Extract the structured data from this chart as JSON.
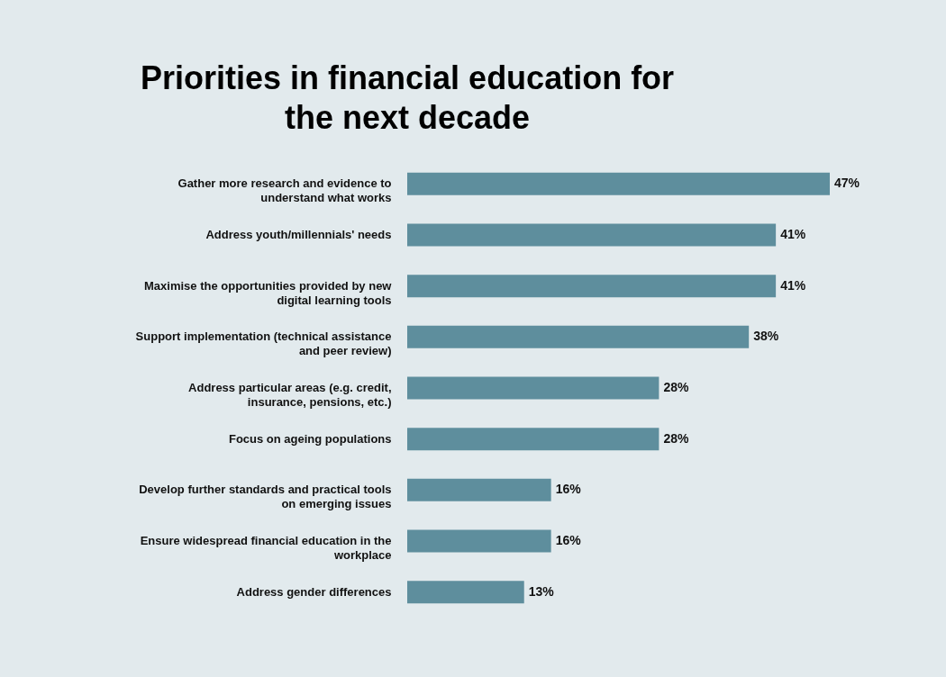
{
  "chart_data": {
    "type": "bar",
    "orientation": "horizontal",
    "title": "Priorities in financial education for the next decade",
    "categories": [
      "Gather more research and evidence to understand what works",
      "Address youth/millennials' needs",
      "Maximise the opportunities provided by new digital learning tools",
      "Support implementation (technical assistance and peer review)",
      "Address particular areas (e.g. credit, insurance, pensions, etc.)",
      "Focus on ageing populations",
      "Develop further standards and practical tools on emerging issues",
      "Ensure widespread financial education in the workplace",
      "Address gender differences"
    ],
    "values": [
      47,
      41,
      41,
      38,
      28,
      28,
      16,
      16,
      13
    ],
    "value_labels": [
      "47%",
      "41%",
      "41%",
      "38%",
      "28%",
      "28%",
      "16%",
      "16%",
      "13%"
    ],
    "color": "#5e8e9d"
  }
}
